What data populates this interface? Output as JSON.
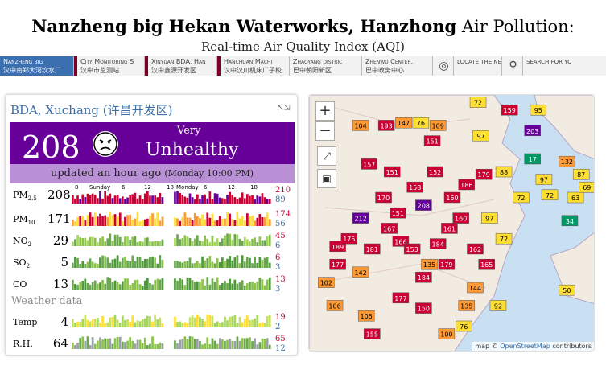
{
  "header": {
    "title_bold": "Nanzheng big Hekan Waterworks, Hanzhong",
    "title_rest": " Air Pollution:",
    "subtitle": "Real-time Air Quality Index (AQI)"
  },
  "nav": {
    "items": [
      {
        "en": "Nanzheng big",
        "zh": "汉中南郑大河坎水厂"
      },
      {
        "en": "City Monitoring S",
        "zh": "汉中市监测站"
      },
      {
        "en": "Xinyuan BDA, Han",
        "zh": "汉中鑫源开发区"
      },
      {
        "en": "Hanchuan Machi",
        "zh": "汉中汉川机床厂子校"
      },
      {
        "en": "Zhaoyang distric",
        "zh": "巴中朝阳新区"
      },
      {
        "en": "Zhenwu Center,",
        "zh": "巴中政务中心"
      }
    ],
    "locate_label": "LOCATE THE NEAREST CITY",
    "search_label": "SEARCH FOR YOUR CITY"
  },
  "station": {
    "title": "BDA, Xuchang (许昌开发区)",
    "aqi": "208",
    "category_top": "Very",
    "category_main": "Unhealthy",
    "updated": "updated an hour ago",
    "updated_sub": "(Monday 10:00 PM)",
    "aqi_color": "#660099"
  },
  "timeline": {
    "day1": "Sunday",
    "day2": "Monday",
    "ticks": [
      "8",
      "6",
      "12",
      "18",
      "6",
      "12",
      "18"
    ]
  },
  "pollutants": [
    {
      "label": "PM",
      "sub": "2.5",
      "value": "208",
      "max": "210",
      "min": "89"
    },
    {
      "label": "PM",
      "sub": "10",
      "value": "171",
      "max": "174",
      "min": "56"
    },
    {
      "label": "NO",
      "sub": "2",
      "value": "29",
      "max": "45",
      "min": "6"
    },
    {
      "label": "SO",
      "sub": "2",
      "value": "5",
      "max": "6",
      "min": "3"
    },
    {
      "label": "CO",
      "sub": "",
      "value": "13",
      "max": "13",
      "min": "3"
    }
  ],
  "weather": {
    "title": "Weather data",
    "items": [
      {
        "label": "Temp",
        "value": "4",
        "max": "19",
        "min": "2"
      },
      {
        "label": "R.H.",
        "value": "64",
        "max": "65",
        "min": "12"
      }
    ]
  },
  "map": {
    "zoom_in": "+",
    "zoom_out": "−",
    "attribution_prefix": "map © ",
    "attribution_link": "OpenStreetMap",
    "attribution_suffix": " contributors",
    "markers": [
      {
        "v": "72",
        "c": "#ffde33",
        "x": 0.59,
        "y": 0.03
      },
      {
        "v": "159",
        "c": "#cc0033",
        "x": 0.7,
        "y": 0.06
      },
      {
        "v": "95",
        "c": "#ffde33",
        "x": 0.8,
        "y": 0.06
      },
      {
        "v": "104",
        "c": "#ff9933",
        "x": 0.18,
        "y": 0.12
      },
      {
        "v": "147",
        "c": "#ff9933",
        "x": 0.33,
        "y": 0.11
      },
      {
        "v": "76",
        "c": "#ffde33",
        "x": 0.39,
        "y": 0.11
      },
      {
        "v": "109",
        "c": "#ff9933",
        "x": 0.45,
        "y": 0.12
      },
      {
        "v": "193",
        "c": "#cc0033",
        "x": 0.27,
        "y": 0.12
      },
      {
        "v": "97",
        "c": "#ffde33",
        "x": 0.6,
        "y": 0.16
      },
      {
        "v": "203",
        "c": "#660099",
        "x": 0.78,
        "y": 0.14
      },
      {
        "v": "151",
        "c": "#cc0033",
        "x": 0.43,
        "y": 0.18
      },
      {
        "v": "17",
        "c": "#009966",
        "x": 0.78,
        "y": 0.25
      },
      {
        "v": "132",
        "c": "#ff9933",
        "x": 0.9,
        "y": 0.26
      },
      {
        "v": "157",
        "c": "#cc0033",
        "x": 0.21,
        "y": 0.27
      },
      {
        "v": "151",
        "c": "#cc0033",
        "x": 0.29,
        "y": 0.3
      },
      {
        "v": "152",
        "c": "#cc0033",
        "x": 0.44,
        "y": 0.3
      },
      {
        "v": "179",
        "c": "#cc0033",
        "x": 0.61,
        "y": 0.31
      },
      {
        "v": "87",
        "c": "#ffde33",
        "x": 0.95,
        "y": 0.31
      },
      {
        "v": "97",
        "c": "#ffde33",
        "x": 0.82,
        "y": 0.33
      },
      {
        "v": "186",
        "c": "#cc0033",
        "x": 0.55,
        "y": 0.35
      },
      {
        "v": "208",
        "c": "#660099",
        "x": 0.4,
        "y": 0.43
      },
      {
        "v": "212",
        "c": "#660099",
        "x": 0.18,
        "y": 0.48
      },
      {
        "v": "151",
        "c": "#cc0033",
        "x": 0.31,
        "y": 0.46
      },
      {
        "v": "72",
        "c": "#ffde33",
        "x": 0.84,
        "y": 0.39
      },
      {
        "v": "160",
        "c": "#cc0033",
        "x": 0.53,
        "y": 0.48
      },
      {
        "v": "97",
        "c": "#ffde33",
        "x": 0.63,
        "y": 0.48
      },
      {
        "v": "34",
        "c": "#009966",
        "x": 0.91,
        "y": 0.49
      },
      {
        "v": "189",
        "c": "#cc0033",
        "x": 0.1,
        "y": 0.59
      },
      {
        "v": "166",
        "c": "#cc0033",
        "x": 0.32,
        "y": 0.57
      },
      {
        "v": "184",
        "c": "#cc0033",
        "x": 0.45,
        "y": 0.58
      },
      {
        "v": "72",
        "c": "#ffde33",
        "x": 0.68,
        "y": 0.56
      },
      {
        "v": "177",
        "c": "#cc0033",
        "x": 0.1,
        "y": 0.66
      },
      {
        "v": "135",
        "c": "#ff9933",
        "x": 0.42,
        "y": 0.66
      },
      {
        "v": "179",
        "c": "#cc0033",
        "x": 0.48,
        "y": 0.66
      },
      {
        "v": "165",
        "c": "#cc0033",
        "x": 0.62,
        "y": 0.66
      },
      {
        "v": "142",
        "c": "#ff9933",
        "x": 0.18,
        "y": 0.69
      },
      {
        "v": "102",
        "c": "#ff9933",
        "x": 0.06,
        "y": 0.73
      },
      {
        "v": "184",
        "c": "#cc0033",
        "x": 0.4,
        "y": 0.71
      },
      {
        "v": "144",
        "c": "#ff9933",
        "x": 0.58,
        "y": 0.75
      },
      {
        "v": "50",
        "c": "#ffde33",
        "x": 0.9,
        "y": 0.76
      },
      {
        "v": "177",
        "c": "#cc0033",
        "x": 0.32,
        "y": 0.79
      },
      {
        "v": "135",
        "c": "#ff9933",
        "x": 0.55,
        "y": 0.82
      },
      {
        "v": "92",
        "c": "#ffde33",
        "x": 0.66,
        "y": 0.82
      },
      {
        "v": "106",
        "c": "#ff9933",
        "x": 0.09,
        "y": 0.82
      },
      {
        "v": "105",
        "c": "#ff9933",
        "x": 0.2,
        "y": 0.86
      },
      {
        "v": "150",
        "c": "#cc0033",
        "x": 0.4,
        "y": 0.83
      },
      {
        "v": "76",
        "c": "#ffde33",
        "x": 0.54,
        "y": 0.9
      },
      {
        "v": "100",
        "c": "#ff9933",
        "x": 0.48,
        "y": 0.93
      },
      {
        "v": "155",
        "c": "#cc0033",
        "x": 0.22,
        "y": 0.93
      },
      {
        "v": "153",
        "c": "#cc0033",
        "x": 0.36,
        "y": 0.6
      },
      {
        "v": "160",
        "c": "#cc0033",
        "x": 0.5,
        "y": 0.4
      },
      {
        "v": "167",
        "c": "#cc0033",
        "x": 0.28,
        "y": 0.52
      },
      {
        "v": "175",
        "c": "#cc0033",
        "x": 0.14,
        "y": 0.56
      },
      {
        "v": "181",
        "c": "#cc0033",
        "x": 0.22,
        "y": 0.6
      },
      {
        "v": "161",
        "c": "#cc0033",
        "x": 0.49,
        "y": 0.52
      },
      {
        "v": "158",
        "c": "#cc0033",
        "x": 0.37,
        "y": 0.36
      },
      {
        "v": "170",
        "c": "#cc0033",
        "x": 0.26,
        "y": 0.4
      },
      {
        "v": "162",
        "c": "#cc0033",
        "x": 0.58,
        "y": 0.6
      },
      {
        "v": "88",
        "c": "#ffde33",
        "x": 0.68,
        "y": 0.3
      },
      {
        "v": "72",
        "c": "#ffde33",
        "x": 0.74,
        "y": 0.4
      },
      {
        "v": "63",
        "c": "#ffde33",
        "x": 0.93,
        "y": 0.4
      },
      {
        "v": "69",
        "c": "#ffde33",
        "x": 0.97,
        "y": 0.36
      }
    ]
  }
}
